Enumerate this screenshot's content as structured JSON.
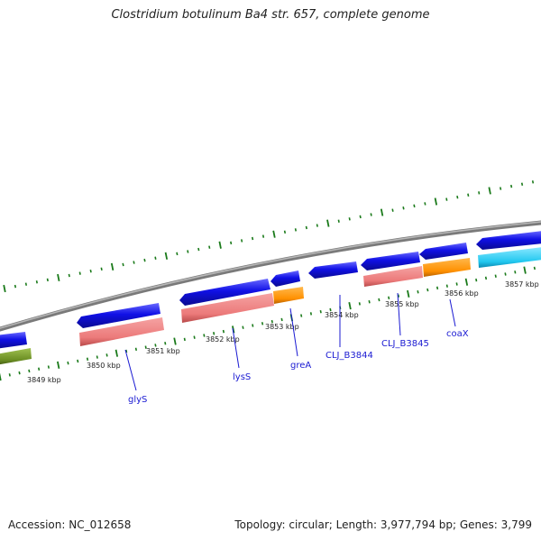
{
  "title": "Clostridium botulinum Ba4 str. 657, complete genome",
  "footer": {
    "accession": "Accession: NC_012658",
    "topology": "Topology: circular; Length: 3,977,794 bp; Genes: 3,799"
  },
  "ticks": [
    "3849 kbp",
    "3850 kbp",
    "3851 kbp",
    "3852 kbp",
    "3853 kbp",
    "3854 kbp",
    "3855 kbp",
    "3856 kbp",
    "3857 kbp"
  ],
  "gene_labels": [
    "glyS",
    "lysS",
    "greA",
    "CLJ_B3844",
    "CLJ_B3845",
    "coaX"
  ],
  "colors": {
    "backbone": "#8a8a8a",
    "cds": "#1010e6",
    "gene_pink": "#ee8080",
    "gene_orange": "#ff9900",
    "gene_cyan": "#22c8f0",
    "gene_olive": "#6b8e23",
    "tick": "#1a7a1a",
    "label": "#1a1ad2"
  }
}
